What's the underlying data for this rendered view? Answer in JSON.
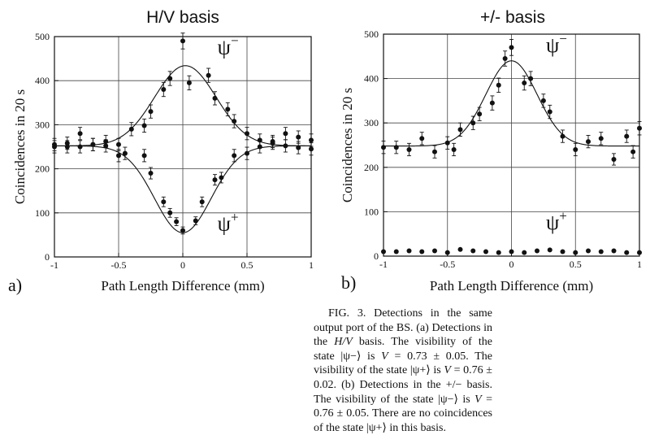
{
  "chart_data": [
    {
      "type": "scatter",
      "panel_label": "a)",
      "title": "H/V basis",
      "xlabel": "Path Length Difference (mm)",
      "ylabel": "Coincidences in 20 s",
      "xlim": [
        -1,
        1
      ],
      "ylim": [
        0,
        500
      ],
      "xticks": [
        "-1",
        "-0.5",
        "0",
        "0.5",
        "1"
      ],
      "yticks": [
        "0",
        "100",
        "200",
        "300",
        "400",
        "500"
      ],
      "grid": true,
      "series": [
        {
          "name": "ψ−",
          "label_main": "ψ",
          "label_sup": "−",
          "label_at": [
            0.27,
            460
          ],
          "points": [
            {
              "x": -1.0,
              "y": 255,
              "err": 14
            },
            {
              "x": -0.9,
              "y": 250,
              "err": 14
            },
            {
              "x": -0.8,
              "y": 280,
              "err": 14
            },
            {
              "x": -0.7,
              "y": 255,
              "err": 14
            },
            {
              "x": -0.6,
              "y": 262,
              "err": 14
            },
            {
              "x": -0.5,
              "y": 255,
              "err": 14
            },
            {
              "x": -0.4,
              "y": 290,
              "err": 15
            },
            {
              "x": -0.3,
              "y": 298,
              "err": 15
            },
            {
              "x": -0.25,
              "y": 330,
              "err": 15
            },
            {
              "x": -0.15,
              "y": 380,
              "err": 16
            },
            {
              "x": -0.1,
              "y": 405,
              "err": 16
            },
            {
              "x": 0.0,
              "y": 490,
              "err": 18
            },
            {
              "x": 0.05,
              "y": 395,
              "err": 16
            },
            {
              "x": 0.2,
              "y": 412,
              "err": 16
            },
            {
              "x": 0.25,
              "y": 360,
              "err": 15
            },
            {
              "x": 0.35,
              "y": 335,
              "err": 15
            },
            {
              "x": 0.4,
              "y": 308,
              "err": 15
            },
            {
              "x": 0.5,
              "y": 280,
              "err": 14
            },
            {
              "x": 0.6,
              "y": 265,
              "err": 14
            },
            {
              "x": 0.7,
              "y": 262,
              "err": 14
            },
            {
              "x": 0.8,
              "y": 280,
              "err": 14
            },
            {
              "x": 0.9,
              "y": 272,
              "err": 14
            },
            {
              "x": 1.0,
              "y": 265,
              "err": 14
            }
          ],
          "fit": {
            "kind": "gaussian",
            "baseline": 252,
            "amplitude": 182,
            "center": 0.02,
            "sigma": 0.24
          }
        },
        {
          "name": "ψ+",
          "label_main": "ψ",
          "label_sup": "+",
          "label_at": [
            0.27,
            60
          ],
          "points": [
            {
              "x": -1.0,
              "y": 250,
              "err": 14
            },
            {
              "x": -0.9,
              "y": 258,
              "err": 14
            },
            {
              "x": -0.8,
              "y": 250,
              "err": 14
            },
            {
              "x": -0.7,
              "y": 255,
              "err": 14
            },
            {
              "x": -0.6,
              "y": 252,
              "err": 14
            },
            {
              "x": -0.5,
              "y": 230,
              "err": 14
            },
            {
              "x": -0.45,
              "y": 235,
              "err": 14
            },
            {
              "x": -0.3,
              "y": 230,
              "err": 14
            },
            {
              "x": -0.25,
              "y": 190,
              "err": 13
            },
            {
              "x": -0.15,
              "y": 125,
              "err": 11
            },
            {
              "x": -0.1,
              "y": 100,
              "err": 10
            },
            {
              "x": -0.05,
              "y": 80,
              "err": 9
            },
            {
              "x": 0.0,
              "y": 60,
              "err": 8
            },
            {
              "x": 0.1,
              "y": 82,
              "err": 9
            },
            {
              "x": 0.15,
              "y": 125,
              "err": 11
            },
            {
              "x": 0.25,
              "y": 175,
              "err": 12
            },
            {
              "x": 0.3,
              "y": 180,
              "err": 12
            },
            {
              "x": 0.4,
              "y": 230,
              "err": 14
            },
            {
              "x": 0.5,
              "y": 235,
              "err": 14
            },
            {
              "x": 0.6,
              "y": 250,
              "err": 14
            },
            {
              "x": 0.7,
              "y": 258,
              "err": 14
            },
            {
              "x": 0.8,
              "y": 252,
              "err": 14
            },
            {
              "x": 0.9,
              "y": 248,
              "err": 14
            },
            {
              "x": 1.0,
              "y": 245,
              "err": 14
            }
          ],
          "fit": {
            "kind": "gaussian",
            "baseline": 252,
            "amplitude": -197,
            "center": 0.0,
            "sigma": 0.22
          }
        }
      ]
    },
    {
      "type": "scatter",
      "panel_label": "b)",
      "title": "+/- basis",
      "xlabel": "Path Length Difference (mm)",
      "ylabel": "Coincidences in 20 s",
      "xlim": [
        -1,
        1
      ],
      "ylim": [
        0,
        500
      ],
      "xticks": [
        "-1",
        "-0.5",
        "0",
        "0.5",
        "1"
      ],
      "yticks": [
        "0",
        "100",
        "200",
        "300",
        "400",
        "500"
      ],
      "grid": true,
      "series": [
        {
          "name": "ψ−",
          "label_main": "ψ",
          "label_sup": "−",
          "label_at": [
            0.27,
            460
          ],
          "points": [
            {
              "x": -1.0,
              "y": 245,
              "err": 14
            },
            {
              "x": -0.9,
              "y": 245,
              "err": 14
            },
            {
              "x": -0.8,
              "y": 240,
              "err": 14
            },
            {
              "x": -0.7,
              "y": 265,
              "err": 14
            },
            {
              "x": -0.6,
              "y": 235,
              "err": 14
            },
            {
              "x": -0.5,
              "y": 255,
              "err": 14
            },
            {
              "x": -0.45,
              "y": 240,
              "err": 14
            },
            {
              "x": -0.4,
              "y": 285,
              "err": 15
            },
            {
              "x": -0.3,
              "y": 300,
              "err": 15
            },
            {
              "x": -0.25,
              "y": 320,
              "err": 15
            },
            {
              "x": -0.15,
              "y": 345,
              "err": 16
            },
            {
              "x": -0.1,
              "y": 385,
              "err": 16
            },
            {
              "x": -0.05,
              "y": 445,
              "err": 17
            },
            {
              "x": 0.0,
              "y": 470,
              "err": 18
            },
            {
              "x": 0.1,
              "y": 390,
              "err": 16
            },
            {
              "x": 0.15,
              "y": 400,
              "err": 16
            },
            {
              "x": 0.25,
              "y": 350,
              "err": 15
            },
            {
              "x": 0.3,
              "y": 325,
              "err": 15
            },
            {
              "x": 0.4,
              "y": 270,
              "err": 14
            },
            {
              "x": 0.5,
              "y": 240,
              "err": 14
            },
            {
              "x": 0.6,
              "y": 258,
              "err": 14
            },
            {
              "x": 0.7,
              "y": 265,
              "err": 14
            },
            {
              "x": 0.8,
              "y": 218,
              "err": 13
            },
            {
              "x": 0.9,
              "y": 270,
              "err": 14
            },
            {
              "x": 0.95,
              "y": 235,
              "err": 14
            },
            {
              "x": 1.0,
              "y": 288,
              "err": 15
            }
          ],
          "fit": {
            "kind": "gaussian",
            "baseline": 248,
            "amplitude": 192,
            "center": 0.0,
            "sigma": 0.2
          }
        },
        {
          "name": "ψ+",
          "label_main": "ψ",
          "label_sup": "+",
          "label_at": [
            0.27,
            60
          ],
          "points": [
            {
              "x": -1.0,
              "y": 10
            },
            {
              "x": -0.9,
              "y": 10
            },
            {
              "x": -0.8,
              "y": 12
            },
            {
              "x": -0.7,
              "y": 10
            },
            {
              "x": -0.6,
              "y": 12
            },
            {
              "x": -0.5,
              "y": 8
            },
            {
              "x": -0.4,
              "y": 15
            },
            {
              "x": -0.3,
              "y": 12
            },
            {
              "x": -0.2,
              "y": 10
            },
            {
              "x": -0.1,
              "y": 8
            },
            {
              "x": 0.0,
              "y": 10
            },
            {
              "x": 0.1,
              "y": 8
            },
            {
              "x": 0.2,
              "y": 12
            },
            {
              "x": 0.3,
              "y": 14
            },
            {
              "x": 0.4,
              "y": 10
            },
            {
              "x": 0.5,
              "y": 8
            },
            {
              "x": 0.6,
              "y": 12
            },
            {
              "x": 0.7,
              "y": 10
            },
            {
              "x": 0.8,
              "y": 12
            },
            {
              "x": 0.9,
              "y": 8
            },
            {
              "x": 1.0,
              "y": 8
            }
          ]
        }
      ]
    }
  ],
  "caption": {
    "lead": "FIG. 3.   Detections in the same output port of the BS.",
    "a_prefix": "(a) Detections in the ",
    "a_basis": "H/V",
    "a_s1": " basis. The visibility of the state |ψ−⟩ is ",
    "a_v1_sym": "V",
    "a_v1": " = 0.73 ± 0.05. The visibility of the state |ψ+⟩ is ",
    "a_v2_sym": "V",
    "a_v2": " = 0.76 ± 0.02.",
    "b_s1": " (b) Detections in the +/− basis. The visibility of the state |ψ−⟩ is ",
    "b_v_sym": "V",
    "b_v": " = 0.76 ± 0.05. There are no coincidences of the state |ψ+⟩ in this basis."
  }
}
